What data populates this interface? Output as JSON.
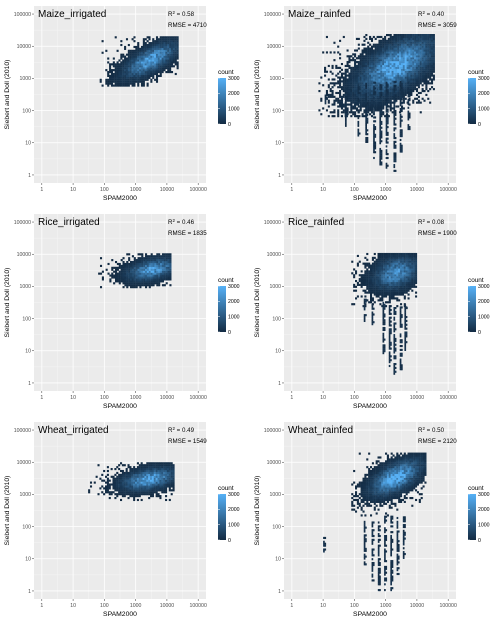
{
  "chart_data": [
    {
      "type": "heatmap",
      "title": "Maize_irrigated",
      "r2_label": "R",
      "r2_sup": "2",
      "r2_value": " = 0.58",
      "rmse": "RMSE = 4710",
      "xlabel": "SPAM2000",
      "ylabel": "Siebert and Doll (2010)",
      "x_scale": "log10",
      "y_scale": "log10",
      "xlim": [
        1,
        100000
      ],
      "ylim": [
        1,
        100000
      ],
      "x_ticks": [
        "1",
        "10",
        "100",
        "1000",
        "10000",
        "100000"
      ],
      "y_ticks": [
        "1",
        "10",
        "100",
        "1000",
        "10000",
        "100000"
      ],
      "legend": {
        "title": "count",
        "ticks": [
          "0",
          "1000",
          "2000",
          "3000"
        ],
        "max": 3000,
        "placement": "right"
      },
      "density_blobs": [
        {
          "x_log": [
            1.85,
            4.35
          ],
          "y_log": [
            2.75,
            4.25
          ],
          "center": [
            3.45,
            3.55
          ],
          "spread": [
            0.85,
            0.55
          ],
          "corr": 0.7,
          "peak": 2600
        }
      ],
      "tails": []
    },
    {
      "type": "heatmap",
      "title": "Maize_rainfed",
      "r2_label": "R",
      "r2_sup": "2",
      "r2_value": " = 0.40",
      "rmse": "RMSE = 3059",
      "xlabel": "SPAM2000",
      "ylabel": "Siebert and Doll (2010)",
      "x_scale": "log10",
      "y_scale": "log10",
      "xlim": [
        1,
        100000
      ],
      "ylim": [
        1,
        100000
      ],
      "x_ticks": [
        "1",
        "10",
        "100",
        "1000",
        "10000",
        "100000"
      ],
      "y_ticks": [
        "1",
        "10",
        "100",
        "1000",
        "10000",
        "100000"
      ],
      "legend": {
        "title": "count",
        "ticks": [
          "0",
          "1000",
          "2000",
          "3000"
        ],
        "max": 3000,
        "placement": "right"
      },
      "density_blobs": [
        {
          "x_log": [
            0.85,
            4.55
          ],
          "y_log": [
            1.8,
            4.35
          ],
          "center": [
            3.3,
            3.35
          ],
          "spread": [
            1.2,
            0.9
          ],
          "corr": 0.6,
          "peak": 2900
        }
      ],
      "tails": [
        {
          "x_log": 1.05,
          "y_log": [
            2.2,
            2.6
          ]
        },
        {
          "x_log": 1.7,
          "y_log": [
            1.5,
            2.7
          ]
        },
        {
          "x_log": 2.1,
          "y_log": [
            1.2,
            2.8
          ]
        },
        {
          "x_log": 2.35,
          "y_log": [
            1.0,
            2.9
          ]
        },
        {
          "x_log": 2.6,
          "y_log": [
            0.5,
            2.9
          ]
        },
        {
          "x_log": 2.8,
          "y_log": [
            0.3,
            2.8
          ]
        },
        {
          "x_log": 3.0,
          "y_log": [
            0.2,
            2.9
          ]
        },
        {
          "x_log": 3.25,
          "y_log": [
            0.1,
            2.9
          ]
        },
        {
          "x_log": 3.45,
          "y_log": [
            0.7,
            2.9
          ]
        },
        {
          "x_log": 3.7,
          "y_log": [
            1.4,
            2.9
          ]
        }
      ]
    },
    {
      "type": "heatmap",
      "title": "Rice_irrigated",
      "r2_label": "R",
      "r2_sup": "2",
      "r2_value": " = 0.46",
      "rmse": "RMSE = 1835",
      "xlabel": "SPAM2000",
      "ylabel": "Siebert and Doll (2010)",
      "x_scale": "log10",
      "y_scale": "log10",
      "xlim": [
        1,
        100000
      ],
      "ylim": [
        1,
        100000
      ],
      "x_ticks": [
        "1",
        "10",
        "100",
        "1000",
        "10000",
        "100000"
      ],
      "y_ticks": [
        "1",
        "10",
        "100",
        "1000",
        "10000",
        "100000"
      ],
      "legend": {
        "title": "count",
        "ticks": [
          "0",
          "1000",
          "2000",
          "3000"
        ],
        "max": 3000,
        "placement": "right"
      },
      "density_blobs": [
        {
          "x_log": [
            1.8,
            4.1
          ],
          "y_log": [
            2.95,
            4.0
          ],
          "center": [
            3.5,
            3.5
          ],
          "spread": [
            0.8,
            0.35
          ],
          "corr": 0.4,
          "peak": 2400
        }
      ],
      "tails": []
    },
    {
      "type": "heatmap",
      "title": "Rice_rainfed",
      "r2_label": "R",
      "r2_sup": "2",
      "r2_value": " = 0.08",
      "rmse": "RMSE = 1900",
      "xlabel": "SPAM2000",
      "ylabel": "Siebert and Doll (2010)",
      "x_scale": "log10",
      "y_scale": "log10",
      "xlim": [
        1,
        100000
      ],
      "ylim": [
        1,
        100000
      ],
      "x_ticks": [
        "1",
        "10",
        "100",
        "1000",
        "10000",
        "100000"
      ],
      "y_ticks": [
        "1",
        "10",
        "100",
        "1000",
        "10000",
        "100000"
      ],
      "legend": {
        "title": "count",
        "ticks": [
          "0",
          "1000",
          "2000",
          "3000"
        ],
        "max": 3000,
        "placement": "right"
      },
      "density_blobs": [
        {
          "x_log": [
            1.9,
            4.0
          ],
          "y_log": [
            2.3,
            4.0
          ],
          "center": [
            3.3,
            3.4
          ],
          "spread": [
            0.7,
            0.5
          ],
          "corr": 0.3,
          "peak": 2200
        }
      ],
      "tails": [
        {
          "x_log": 2.3,
          "y_log": [
            1.9,
            2.6
          ]
        },
        {
          "x_log": 2.55,
          "y_log": [
            1.8,
            2.5
          ]
        },
        {
          "x_log": 2.9,
          "y_log": [
            0.9,
            2.5
          ]
        },
        {
          "x_log": 3.1,
          "y_log": [
            0.5,
            2.4
          ]
        },
        {
          "x_log": 3.25,
          "y_log": [
            0.2,
            2.4
          ]
        },
        {
          "x_log": 3.45,
          "y_log": [
            0.4,
            2.4
          ]
        },
        {
          "x_log": 3.6,
          "y_log": [
            1.0,
            2.4
          ]
        }
      ]
    },
    {
      "type": "heatmap",
      "title": "Wheat_irrigated",
      "r2_label": "R",
      "r2_sup": "2",
      "r2_value": " = 0.49",
      "rmse": "RMSE = 1549",
      "xlabel": "SPAM2000",
      "ylabel": "Siebert and Doll (2010)",
      "x_scale": "log10",
      "y_scale": "log10",
      "xlim": [
        1,
        100000
      ],
      "ylim": [
        1,
        100000
      ],
      "x_ticks": [
        "1",
        "10",
        "100",
        "1000",
        "10000",
        "100000"
      ],
      "y_ticks": [
        "1",
        "10",
        "100",
        "1000",
        "10000",
        "100000"
      ],
      "legend": {
        "title": "count",
        "ticks": [
          "0",
          "1000",
          "2000",
          "3000"
        ],
        "max": 3000,
        "placement": "right"
      },
      "density_blobs": [
        {
          "x_log": [
            1.3,
            4.2
          ],
          "y_log": [
            2.8,
            4.0
          ],
          "center": [
            3.4,
            3.45
          ],
          "spread": [
            0.85,
            0.35
          ],
          "corr": 0.4,
          "peak": 2700
        }
      ],
      "tails": []
    },
    {
      "type": "heatmap",
      "title": "Wheat_rainfed",
      "r2_label": "R",
      "r2_sup": "2",
      "r2_value": " = 0.50",
      "rmse": "RMSE = 2120",
      "xlabel": "SPAM2000",
      "ylabel": "Siebert and Doll (2010)",
      "x_scale": "log10",
      "y_scale": "log10",
      "xlim": [
        1,
        100000
      ],
      "ylim": [
        1,
        100000
      ],
      "x_ticks": [
        "1",
        "10",
        "100",
        "1000",
        "10000",
        "100000"
      ],
      "y_ticks": [
        "1",
        "10",
        "100",
        "1000",
        "10000",
        "100000"
      ],
      "legend": {
        "title": "count",
        "ticks": [
          "0",
          "1000",
          "2000",
          "3000"
        ],
        "max": 3000,
        "placement": "right"
      },
      "density_blobs": [
        {
          "x_log": [
            1.9,
            4.25
          ],
          "y_log": [
            2.2,
            4.25
          ],
          "center": [
            3.3,
            3.5
          ],
          "spread": [
            0.8,
            0.55
          ],
          "corr": 0.6,
          "peak": 3000
        }
      ],
      "tails": [
        {
          "x_log": 1.0,
          "y_log": [
            1.2,
            1.8
          ]
        },
        {
          "x_log": 2.3,
          "y_log": [
            0.8,
            2.2
          ]
        },
        {
          "x_log": 2.55,
          "y_log": [
            0.3,
            2.2
          ]
        },
        {
          "x_log": 2.75,
          "y_log": [
            0.0,
            2.2
          ]
        },
        {
          "x_log": 2.95,
          "y_log": [
            0.0,
            2.3
          ]
        },
        {
          "x_log": 3.15,
          "y_log": [
            0.0,
            2.3
          ]
        },
        {
          "x_log": 3.35,
          "y_log": [
            0.5,
            2.3
          ]
        },
        {
          "x_log": 3.55,
          "y_log": [
            1.0,
            2.3
          ]
        }
      ]
    }
  ],
  "colors": {
    "panel_bg": "#ebebeb",
    "grid_major": "#ffffff",
    "grid_minor": "#f5f5f5",
    "low": "#132b43",
    "high": "#56b1f7"
  }
}
